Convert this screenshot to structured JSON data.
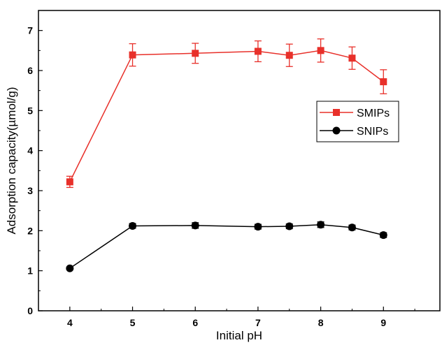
{
  "chart_data": {
    "type": "line",
    "title": "",
    "xlabel": "Initial pH",
    "ylabel": "Adsorption capacity(µmol/g)",
    "xlim": [
      3.5,
      9.9
    ],
    "ylim": [
      0,
      7.5
    ],
    "x_ticks": [
      "4",
      "5",
      "6",
      "7",
      "8",
      "9"
    ],
    "y_ticks": [
      "0",
      "1",
      "2",
      "3",
      "4",
      "5",
      "6",
      "7"
    ],
    "x_tick_values": [
      4,
      5,
      6,
      7,
      8,
      9
    ],
    "y_tick_values": [
      0,
      1,
      2,
      3,
      4,
      5,
      6,
      7
    ],
    "grid": false,
    "legend_position": "right",
    "series": [
      {
        "name": "SMIPs",
        "color": "#e8302a",
        "marker": "square",
        "x": [
          4,
          5,
          6,
          7,
          7.5,
          8,
          8.5,
          9
        ],
        "y": [
          3.22,
          6.39,
          6.43,
          6.48,
          6.38,
          6.5,
          6.31,
          5.72
        ],
        "error": [
          0.14,
          0.28,
          0.25,
          0.26,
          0.28,
          0.29,
          0.28,
          0.3
        ]
      },
      {
        "name": "SNIPs",
        "color": "#000000",
        "marker": "circle",
        "x": [
          4,
          5,
          6,
          7,
          7.5,
          8,
          8.5,
          9
        ],
        "y": [
          1.06,
          2.12,
          2.13,
          2.1,
          2.11,
          2.15,
          2.08,
          1.89
        ],
        "error": [
          0.03,
          0.06,
          0.07,
          0.06,
          0.06,
          0.07,
          0.06,
          0.06
        ]
      }
    ]
  }
}
